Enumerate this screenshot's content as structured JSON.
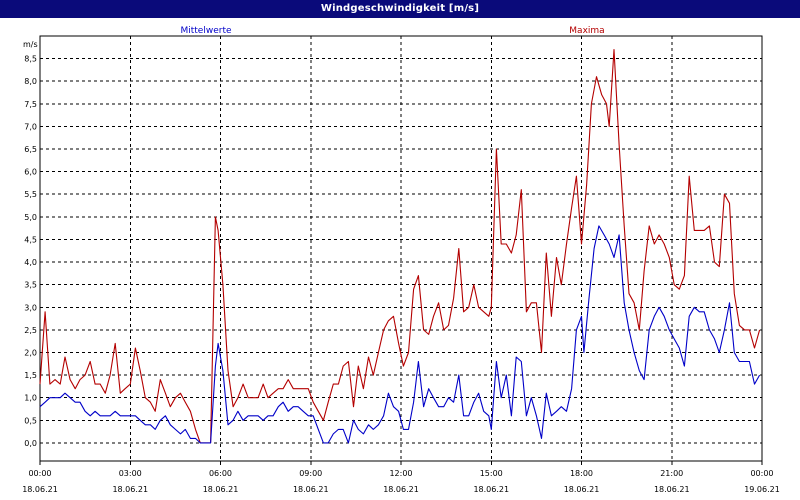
{
  "window": {
    "title": "Windgeschwindigkeit [m/s]"
  },
  "chart_data": {
    "type": "line",
    "title": "Windgeschwindigkeit [m/s]",
    "ylabel": "m/s",
    "ylim": [
      -0.4,
      9.0
    ],
    "xlim": [
      "18.06.21 00:00",
      "19.06.21 00:00"
    ],
    "grid": true,
    "legend_placement": "top",
    "y_ticks": [
      "0,0",
      "0,5",
      "1,0",
      "1,5",
      "2,0",
      "2,5",
      "3,0",
      "3,5",
      "4,0",
      "4,5",
      "5,0",
      "5,5",
      "6,0",
      "6,5",
      "7,0",
      "7,5",
      "8,0",
      "8,5"
    ],
    "y_tick_values": [
      0,
      0.5,
      1,
      1.5,
      2,
      2.5,
      3,
      3.5,
      4,
      4.5,
      5,
      5.5,
      6,
      6.5,
      7,
      7.5,
      8,
      8.5
    ],
    "x_ticks": [
      {
        "time": "00:00",
        "date": "18.06.21"
      },
      {
        "time": "03:00",
        "date": "18.06.21"
      },
      {
        "time": "06:00",
        "date": "18.06.21"
      },
      {
        "time": "09:00",
        "date": "18.06.21"
      },
      {
        "time": "12:00",
        "date": "18.06.21"
      },
      {
        "time": "15:00",
        "date": "18.06.21"
      },
      {
        "time": "18:00",
        "date": "18.06.21"
      },
      {
        "time": "21:00",
        "date": "18.06.21"
      },
      {
        "time": "00:00",
        "date": "19.06.21"
      }
    ],
    "x_tick_hours": [
      0,
      3,
      6,
      9,
      12,
      15,
      18,
      21,
      24
    ],
    "series": [
      {
        "name": "Mittelwerte",
        "color": "#0000c8",
        "points": [
          [
            0,
            0.8
          ],
          [
            0.17,
            0.9
          ],
          [
            0.33,
            1.0
          ],
          [
            0.67,
            1.0
          ],
          [
            0.83,
            1.1
          ],
          [
            1.0,
            1.0
          ],
          [
            1.17,
            0.9
          ],
          [
            1.33,
            0.9
          ],
          [
            1.5,
            0.7
          ],
          [
            1.67,
            0.6
          ],
          [
            1.83,
            0.7
          ],
          [
            2.0,
            0.6
          ],
          [
            2.33,
            0.6
          ],
          [
            2.5,
            0.7
          ],
          [
            2.67,
            0.6
          ],
          [
            3.0,
            0.6
          ],
          [
            3.17,
            0.6
          ],
          [
            3.33,
            0.5
          ],
          [
            3.5,
            0.4
          ],
          [
            3.67,
            0.4
          ],
          [
            3.83,
            0.3
          ],
          [
            4.0,
            0.5
          ],
          [
            4.17,
            0.6
          ],
          [
            4.33,
            0.4
          ],
          [
            4.5,
            0.3
          ],
          [
            4.67,
            0.2
          ],
          [
            4.83,
            0.3
          ],
          [
            5.0,
            0.1
          ],
          [
            5.17,
            0.1
          ],
          [
            5.33,
            0.0
          ],
          [
            5.67,
            0.0
          ],
          [
            5.83,
            1.7
          ],
          [
            5.92,
            2.2
          ],
          [
            6.08,
            1.6
          ],
          [
            6.25,
            0.4
          ],
          [
            6.42,
            0.5
          ],
          [
            6.58,
            0.7
          ],
          [
            6.75,
            0.5
          ],
          [
            6.92,
            0.6
          ],
          [
            7.08,
            0.6
          ],
          [
            7.25,
            0.6
          ],
          [
            7.42,
            0.5
          ],
          [
            7.58,
            0.6
          ],
          [
            7.75,
            0.6
          ],
          [
            7.92,
            0.8
          ],
          [
            8.08,
            0.9
          ],
          [
            8.25,
            0.7
          ],
          [
            8.42,
            0.8
          ],
          [
            8.58,
            0.8
          ],
          [
            8.75,
            0.7
          ],
          [
            8.92,
            0.6
          ],
          [
            9.08,
            0.6
          ],
          [
            9.25,
            0.3
          ],
          [
            9.42,
            0.0
          ],
          [
            9.58,
            0.0
          ],
          [
            9.75,
            0.2
          ],
          [
            9.92,
            0.3
          ],
          [
            10.08,
            0.3
          ],
          [
            10.25,
            0.0
          ],
          [
            10.42,
            0.5
          ],
          [
            10.58,
            0.3
          ],
          [
            10.75,
            0.2
          ],
          [
            10.92,
            0.4
          ],
          [
            11.08,
            0.3
          ],
          [
            11.25,
            0.4
          ],
          [
            11.42,
            0.6
          ],
          [
            11.58,
            1.1
          ],
          [
            11.75,
            0.8
          ],
          [
            11.92,
            0.7
          ],
          [
            12.08,
            0.3
          ],
          [
            12.25,
            0.3
          ],
          [
            12.42,
            0.9
          ],
          [
            12.58,
            1.8
          ],
          [
            12.75,
            0.8
          ],
          [
            12.92,
            1.2
          ],
          [
            13.08,
            1.0
          ],
          [
            13.25,
            0.8
          ],
          [
            13.42,
            0.8
          ],
          [
            13.58,
            1.0
          ],
          [
            13.75,
            0.9
          ],
          [
            13.92,
            1.5
          ],
          [
            14.08,
            0.6
          ],
          [
            14.25,
            0.6
          ],
          [
            14.42,
            0.9
          ],
          [
            14.58,
            1.1
          ],
          [
            14.75,
            0.7
          ],
          [
            14.92,
            0.6
          ],
          [
            15.0,
            0.3
          ],
          [
            15.17,
            1.8
          ],
          [
            15.33,
            1.0
          ],
          [
            15.5,
            1.5
          ],
          [
            15.67,
            0.6
          ],
          [
            15.83,
            1.9
          ],
          [
            16.0,
            1.8
          ],
          [
            16.17,
            0.6
          ],
          [
            16.33,
            1.0
          ],
          [
            16.5,
            0.6
          ],
          [
            16.67,
            0.1
          ],
          [
            16.83,
            1.1
          ],
          [
            17.0,
            0.6
          ],
          [
            17.17,
            0.7
          ],
          [
            17.33,
            0.8
          ],
          [
            17.5,
            0.7
          ],
          [
            17.67,
            1.2
          ],
          [
            17.83,
            2.5
          ],
          [
            18.0,
            2.8
          ],
          [
            18.08,
            2.0
          ],
          [
            18.25,
            3.2
          ],
          [
            18.42,
            4.3
          ],
          [
            18.58,
            4.8
          ],
          [
            18.75,
            4.6
          ],
          [
            18.92,
            4.4
          ],
          [
            19.08,
            4.1
          ],
          [
            19.25,
            4.6
          ],
          [
            19.42,
            3.1
          ],
          [
            19.58,
            2.5
          ],
          [
            19.75,
            2.0
          ],
          [
            19.92,
            1.6
          ],
          [
            20.08,
            1.4
          ],
          [
            20.25,
            2.5
          ],
          [
            20.42,
            2.8
          ],
          [
            20.58,
            3.0
          ],
          [
            20.75,
            2.8
          ],
          [
            20.92,
            2.5
          ],
          [
            21.08,
            2.3
          ],
          [
            21.25,
            2.1
          ],
          [
            21.42,
            1.7
          ],
          [
            21.58,
            2.8
          ],
          [
            21.75,
            3.0
          ],
          [
            21.92,
            2.9
          ],
          [
            22.08,
            2.9
          ],
          [
            22.25,
            2.5
          ],
          [
            22.42,
            2.3
          ],
          [
            22.58,
            2.0
          ],
          [
            22.75,
            2.5
          ],
          [
            22.92,
            3.1
          ],
          [
            23.08,
            2.0
          ],
          [
            23.25,
            1.8
          ],
          [
            23.42,
            1.8
          ],
          [
            23.58,
            1.8
          ],
          [
            23.75,
            1.3
          ],
          [
            23.92,
            1.5
          ]
        ]
      },
      {
        "name": "Maxima",
        "color": "#b40000",
        "points": [
          [
            0,
            1.3
          ],
          [
            0.17,
            2.9
          ],
          [
            0.33,
            1.3
          ],
          [
            0.5,
            1.4
          ],
          [
            0.67,
            1.3
          ],
          [
            0.83,
            1.9
          ],
          [
            1.0,
            1.4
          ],
          [
            1.17,
            1.2
          ],
          [
            1.33,
            1.4
          ],
          [
            1.5,
            1.5
          ],
          [
            1.67,
            1.8
          ],
          [
            1.83,
            1.3
          ],
          [
            2.0,
            1.3
          ],
          [
            2.17,
            1.1
          ],
          [
            2.33,
            1.5
          ],
          [
            2.5,
            2.2
          ],
          [
            2.67,
            1.1
          ],
          [
            2.83,
            1.2
          ],
          [
            3.0,
            1.3
          ],
          [
            3.17,
            2.1
          ],
          [
            3.33,
            1.6
          ],
          [
            3.5,
            1.0
          ],
          [
            3.67,
            0.9
          ],
          [
            3.83,
            0.7
          ],
          [
            4.0,
            1.4
          ],
          [
            4.17,
            1.1
          ],
          [
            4.33,
            0.8
          ],
          [
            4.5,
            1.0
          ],
          [
            4.67,
            1.1
          ],
          [
            4.83,
            0.9
          ],
          [
            5.0,
            0.7
          ],
          [
            5.17,
            0.3
          ],
          [
            5.33,
            0.0
          ],
          [
            5.67,
            0.0
          ],
          [
            5.83,
            5.0
          ],
          [
            5.92,
            4.7
          ],
          [
            6.08,
            3.5
          ],
          [
            6.25,
            1.6
          ],
          [
            6.42,
            0.8
          ],
          [
            6.58,
            1.0
          ],
          [
            6.75,
            1.3
          ],
          [
            6.92,
            1.0
          ],
          [
            7.08,
            1.0
          ],
          [
            7.25,
            1.0
          ],
          [
            7.42,
            1.3
          ],
          [
            7.58,
            1.0
          ],
          [
            7.75,
            1.1
          ],
          [
            7.92,
            1.2
          ],
          [
            8.08,
            1.2
          ],
          [
            8.25,
            1.4
          ],
          [
            8.42,
            1.2
          ],
          [
            8.58,
            1.2
          ],
          [
            8.75,
            1.2
          ],
          [
            8.92,
            1.2
          ],
          [
            9.08,
            0.9
          ],
          [
            9.25,
            0.7
          ],
          [
            9.42,
            0.5
          ],
          [
            9.58,
            0.9
          ],
          [
            9.75,
            1.3
          ],
          [
            9.92,
            1.3
          ],
          [
            10.08,
            1.7
          ],
          [
            10.25,
            1.8
          ],
          [
            10.42,
            0.8
          ],
          [
            10.58,
            1.7
          ],
          [
            10.75,
            1.2
          ],
          [
            10.92,
            1.9
          ],
          [
            11.08,
            1.5
          ],
          [
            11.25,
            2.0
          ],
          [
            11.42,
            2.5
          ],
          [
            11.58,
            2.7
          ],
          [
            11.75,
            2.8
          ],
          [
            11.92,
            2.2
          ],
          [
            12.08,
            1.7
          ],
          [
            12.25,
            2.0
          ],
          [
            12.42,
            3.4
          ],
          [
            12.58,
            3.7
          ],
          [
            12.75,
            2.5
          ],
          [
            12.92,
            2.4
          ],
          [
            13.08,
            2.8
          ],
          [
            13.25,
            3.1
          ],
          [
            13.42,
            2.5
          ],
          [
            13.58,
            2.6
          ],
          [
            13.75,
            3.2
          ],
          [
            13.92,
            4.3
          ],
          [
            14.08,
            2.9
          ],
          [
            14.25,
            3.0
          ],
          [
            14.42,
            3.5
          ],
          [
            14.58,
            3.0
          ],
          [
            14.75,
            2.9
          ],
          [
            14.92,
            2.8
          ],
          [
            15.0,
            3.0
          ],
          [
            15.17,
            6.5
          ],
          [
            15.33,
            4.4
          ],
          [
            15.5,
            4.4
          ],
          [
            15.67,
            4.2
          ],
          [
            15.83,
            4.6
          ],
          [
            16.0,
            5.6
          ],
          [
            16.17,
            2.9
          ],
          [
            16.33,
            3.1
          ],
          [
            16.5,
            3.1
          ],
          [
            16.67,
            2.0
          ],
          [
            16.83,
            4.2
          ],
          [
            17.0,
            2.8
          ],
          [
            17.17,
            4.1
          ],
          [
            17.33,
            3.5
          ],
          [
            17.5,
            4.4
          ],
          [
            17.67,
            5.2
          ],
          [
            17.83,
            5.9
          ],
          [
            18.0,
            4.4
          ],
          [
            18.17,
            5.7
          ],
          [
            18.33,
            7.5
          ],
          [
            18.5,
            8.1
          ],
          [
            18.67,
            7.7
          ],
          [
            18.83,
            7.5
          ],
          [
            18.92,
            7.0
          ],
          [
            19.08,
            8.7
          ],
          [
            19.25,
            6.6
          ],
          [
            19.42,
            4.8
          ],
          [
            19.58,
            3.3
          ],
          [
            19.75,
            3.1
          ],
          [
            19.92,
            2.5
          ],
          [
            20.08,
            3.8
          ],
          [
            20.25,
            4.8
          ],
          [
            20.42,
            4.4
          ],
          [
            20.58,
            4.6
          ],
          [
            20.75,
            4.4
          ],
          [
            20.92,
            4.1
          ],
          [
            21.08,
            3.5
          ],
          [
            21.25,
            3.4
          ],
          [
            21.42,
            3.7
          ],
          [
            21.58,
            5.9
          ],
          [
            21.75,
            4.7
          ],
          [
            21.92,
            4.7
          ],
          [
            22.08,
            4.7
          ],
          [
            22.25,
            4.8
          ],
          [
            22.42,
            4.0
          ],
          [
            22.58,
            3.9
          ],
          [
            22.75,
            5.5
          ],
          [
            22.92,
            5.3
          ],
          [
            23.08,
            3.3
          ],
          [
            23.25,
            2.6
          ],
          [
            23.42,
            2.5
          ],
          [
            23.58,
            2.5
          ],
          [
            23.75,
            2.1
          ],
          [
            23.92,
            2.5
          ]
        ]
      }
    ]
  }
}
